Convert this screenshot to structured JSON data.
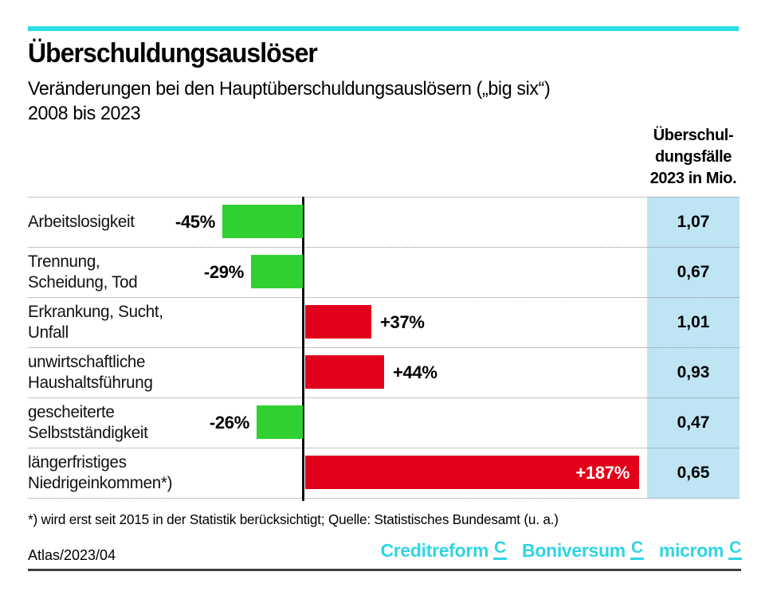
{
  "accent_colors": {
    "cyan_rule": "#2adfe9",
    "green_decrease": "#2fd02f",
    "red_increase": "#e2001a",
    "cases_column_bg": "#bfe4f4"
  },
  "header": {
    "title": "Überschuldungsauslöser",
    "subtitle_line1": "Veränderungen bei den Hauptüberschuldungsauslösern („big six“)",
    "subtitle_line2": "2008 bis 2023"
  },
  "cases_column": {
    "header_line1": "Überschul-",
    "header_line2": "dungsfälle",
    "header_line3": "2023 in Mio."
  },
  "chart_data": {
    "type": "bar",
    "orientation": "horizontal",
    "title": "Überschuldungsauslöser",
    "subtitle": "Veränderungen bei den Hauptüberschuldungsauslösern („big six“) 2008 bis 2023",
    "value_unit": "percent change",
    "zero_axis_line": true,
    "row_separators": "dotted",
    "colors": {
      "decrease": "#2fd02f",
      "increase": "#e2001a"
    },
    "rows": [
      {
        "label": "Arbeitslosigkeit",
        "change_percent": -45,
        "change_label": "-45%",
        "cases_2023_mio": "1,07"
      },
      {
        "label": "Trennung,\nScheidung, Tod",
        "change_percent": -29,
        "change_label": "-29%",
        "cases_2023_mio": "0,67"
      },
      {
        "label": "Erkrankung, Sucht,\nUnfall",
        "change_percent": 37,
        "change_label": "+37%",
        "cases_2023_mio": "1,01"
      },
      {
        "label": "unwirtschaftliche\nHaushaltsführung",
        "change_percent": 44,
        "change_label": "+44%",
        "cases_2023_mio": "0,93"
      },
      {
        "label": "gescheiterte\nSelbstständigkeit",
        "change_percent": -26,
        "change_label": "-26%",
        "cases_2023_mio": "0,47"
      },
      {
        "label": "längerfristiges\nNiedrigeinkommen*)",
        "change_percent": 187,
        "change_label": "+187%",
        "cases_2023_mio": "0,65"
      }
    ]
  },
  "footnote": "*) wird erst seit 2015 in der Statistik berücksichtigt; Quelle: Statistisches Bundesamt (u. a.)",
  "footer": {
    "source_id": "Atlas/2023/04",
    "logos": [
      {
        "name": "Creditreform",
        "mark": "C"
      },
      {
        "name": "Boniversum",
        "mark": "C"
      },
      {
        "name": "microm",
        "mark": "C"
      }
    ]
  }
}
